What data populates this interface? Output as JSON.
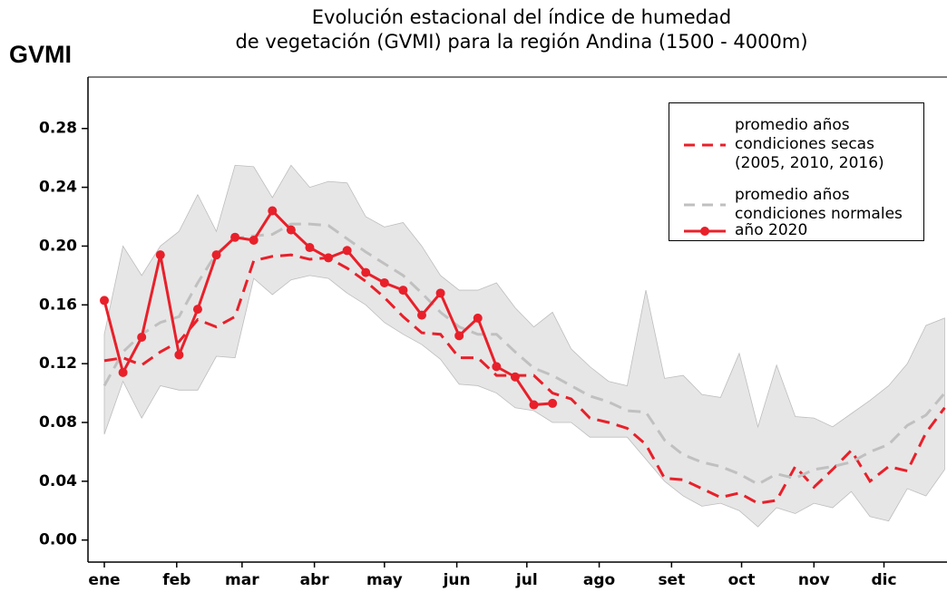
{
  "chart_data": {
    "type": "line",
    "title": [
      "Evolución estacional del índice de humedad",
      "de vegetación (GVMI) para la región Andina (1500 - 4000m)"
    ],
    "y_label": "GVMI",
    "x": [
      1,
      9,
      17,
      25,
      33,
      41,
      49,
      57,
      65,
      73,
      81,
      89,
      97,
      105,
      113,
      121,
      129,
      137,
      145,
      153,
      161,
      169,
      177,
      185,
      193,
      201,
      209,
      217,
      225,
      233,
      241,
      249,
      257,
      265,
      273,
      281,
      289,
      297,
      305,
      313,
      321,
      329,
      337,
      345,
      353,
      361
    ],
    "xlim": [
      -6,
      362
    ],
    "xticks": [
      {
        "value": 1,
        "label": "ene"
      },
      {
        "value": 32,
        "label": "feb"
      },
      {
        "value": 60,
        "label": "mar"
      },
      {
        "value": 91,
        "label": "abr"
      },
      {
        "value": 121,
        "label": "may"
      },
      {
        "value": 152,
        "label": "jun"
      },
      {
        "value": 182,
        "label": "jul"
      },
      {
        "value": 213,
        "label": "ago"
      },
      {
        "value": 244,
        "label": "set"
      },
      {
        "value": 274,
        "label": "oct"
      },
      {
        "value": 305,
        "label": "nov"
      },
      {
        "value": 335,
        "label": "dic"
      }
    ],
    "ylim": [
      -0.015,
      0.315
    ],
    "yticks": [
      {
        "value": 0,
        "label": "0.00"
      },
      0.04,
      0.08,
      0.12,
      0.16,
      {
        "value": 0.2,
        "label": "0.20"
      },
      0.24,
      0.28
    ],
    "band": {
      "color": "#e6e6e6",
      "upper": [
        0.14,
        0.2,
        0.18,
        0.2,
        0.21,
        0.235,
        0.21,
        0.255,
        0.254,
        0.233,
        0.255,
        0.24,
        0.244,
        0.243,
        0.22,
        0.213,
        0.216,
        0.2,
        0.18,
        0.17,
        0.17,
        0.175,
        0.158,
        0.145,
        0.155,
        0.13,
        0.118,
        0.108,
        0.105,
        0.17,
        0.11,
        0.112,
        0.099,
        0.097,
        0.127,
        0.077,
        0.119,
        0.084,
        0.083,
        0.077,
        0.086,
        0.095,
        0.105,
        0.12,
        0.146,
        0.151
      ],
      "lower": [
        0.072,
        0.108,
        0.083,
        0.105,
        0.102,
        0.102,
        0.125,
        0.124,
        0.178,
        0.167,
        0.177,
        0.18,
        0.178,
        0.168,
        0.16,
        0.148,
        0.14,
        0.133,
        0.123,
        0.106,
        0.105,
        0.1,
        0.09,
        0.088,
        0.08,
        0.08,
        0.07,
        0.07,
        0.07,
        0.055,
        0.04,
        0.03,
        0.023,
        0.025,
        0.02,
        0.009,
        0.022,
        0.018,
        0.025,
        0.022,
        0.033,
        0.016,
        0.013,
        0.035,
        0.03,
        0.048
      ]
    },
    "series": [
      {
        "name": "promedio años condiciones secas (2005, 2010, 2016)",
        "color": "#e8202a",
        "style": "dashed",
        "values": [
          0.122,
          0.124,
          0.119,
          0.128,
          0.135,
          0.15,
          0.145,
          0.152,
          0.19,
          0.193,
          0.194,
          0.191,
          0.192,
          0.185,
          0.176,
          0.165,
          0.152,
          0.141,
          0.14,
          0.124,
          0.124,
          0.112,
          0.112,
          0.112,
          0.1,
          0.096,
          0.083,
          0.08,
          0.076,
          0.065,
          0.042,
          0.041,
          0.035,
          0.029,
          0.032,
          0.025,
          0.027,
          0.05,
          0.036,
          0.048,
          0.061,
          0.04,
          0.05,
          0.047,
          0.073,
          0.09
        ]
      },
      {
        "name": "promedio años condiciones normales",
        "color": "#c0c0c0",
        "style": "dashed",
        "values": [
          0.105,
          0.128,
          0.14,
          0.148,
          0.152,
          0.175,
          0.195,
          0.205,
          0.207,
          0.208,
          0.215,
          0.215,
          0.214,
          0.205,
          0.196,
          0.188,
          0.18,
          0.168,
          0.155,
          0.145,
          0.14,
          0.14,
          0.128,
          0.117,
          0.112,
          0.105,
          0.098,
          0.094,
          0.088,
          0.087,
          0.068,
          0.058,
          0.053,
          0.05,
          0.045,
          0.038,
          0.045,
          0.042,
          0.048,
          0.05,
          0.053,
          0.06,
          0.065,
          0.078,
          0.085,
          0.1
        ]
      },
      {
        "name": "año 2020",
        "color": "#e8202a",
        "style": "solid",
        "markers": true,
        "values": [
          0.163,
          0.114,
          0.138,
          0.194,
          0.126,
          0.157,
          0.194,
          0.206,
          0.204,
          0.224,
          0.211,
          0.199,
          0.192,
          0.197,
          0.182,
          0.175,
          0.17,
          0.153,
          0.168,
          0.139,
          0.151,
          0.118,
          0.111,
          0.092,
          0.093,
          null,
          null,
          null,
          null,
          null,
          null,
          null,
          null,
          null,
          null,
          null,
          null,
          null,
          null,
          null,
          null,
          null,
          null,
          null,
          null,
          null
        ]
      }
    ]
  }
}
